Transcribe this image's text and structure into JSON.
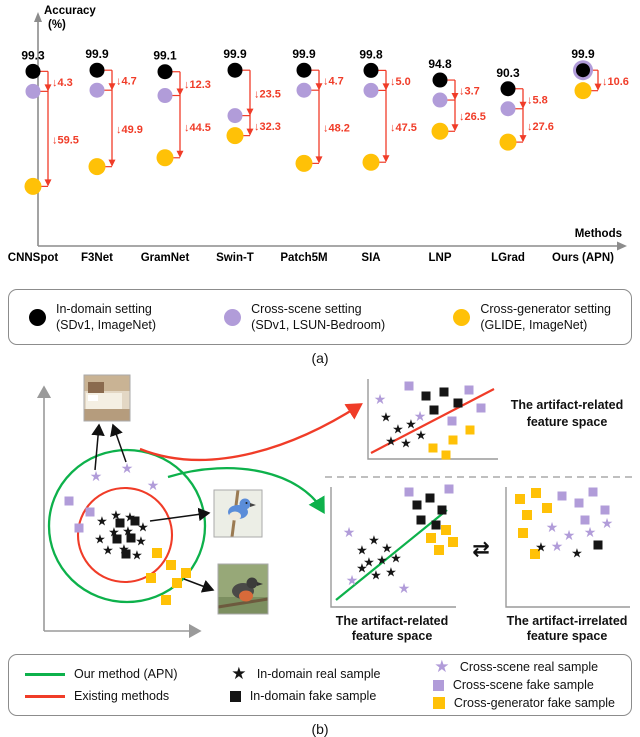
{
  "panel_a": {
    "label": "(a)",
    "legend": [
      {
        "line1": "In-domain setting",
        "line2": "(SDv1, ImageNet)",
        "color": "#000000"
      },
      {
        "line1": "Cross-scene setting",
        "line2": "(SDv1, LSUN-Bedroom)",
        "color": "#b19cd9"
      },
      {
        "line1": "Cross-generator setting",
        "line2": "(GLIDE, ImageNet)",
        "color": "#ffc107"
      }
    ]
  },
  "chart_data": {
    "type": "scatter",
    "title": "",
    "ylabel_line1": "Accuracy",
    "ylabel_line2": "(%)",
    "xlabel": "Methods",
    "categories": [
      "CNNSpot",
      "F3Net",
      "GramNet",
      "Swin-T",
      "Patch5M",
      "SIA",
      "LNP",
      "LGrad",
      "Ours (APN)"
    ],
    "series": [
      {
        "name": "In-domain setting (SDv1, ImageNet)",
        "color": "#000000",
        "values": [
          99.3,
          99.9,
          99.1,
          99.9,
          99.9,
          99.8,
          94.8,
          90.3,
          99.9
        ]
      },
      {
        "name": "Cross-scene setting (SDv1, LSUN-Bedroom)",
        "color": "#b19cd9",
        "values": [
          95.0,
          95.2,
          86.8,
          76.4,
          95.2,
          94.8,
          91.1,
          84.5,
          99.9
        ]
      },
      {
        "name": "Cross-generator setting (GLIDE, ImageNet)",
        "color": "#ffc107",
        "values": [
          39.8,
          50.0,
          54.6,
          67.6,
          51.7,
          52.3,
          68.3,
          62.7,
          89.3
        ]
      }
    ],
    "point_labels": [
      "99.3",
      "99.9",
      "99.1",
      "99.9",
      "99.9",
      "99.8",
      "94.8",
      "90.3",
      "99.9"
    ],
    "drop_annotations": [
      [
        "↓4.3",
        "↓59.5"
      ],
      [
        "↓4.7",
        "↓49.9"
      ],
      [
        "↓12.3",
        "↓44.5"
      ],
      [
        "↓23.5",
        "↓32.3"
      ],
      [
        "↓4.7",
        "↓48.2"
      ],
      [
        "↓5.0",
        "↓47.5"
      ],
      [
        "↓3.7",
        "↓26.5"
      ],
      [
        "↓5.8",
        "↓27.6"
      ],
      [
        "↓10.6"
      ]
    ],
    "annotation_color": "#f03c28",
    "axis_color": "#8c8c8c",
    "ylim": [
      30,
      102
    ],
    "legend_position": "bottom"
  },
  "panel_b": {
    "label": "(b)",
    "captions": {
      "top_right_line1": "The artifact-related",
      "top_right_line2": "feature space",
      "bottom_left_line1": "The artifact-related",
      "bottom_left_line2": "feature space",
      "bottom_right_line1": "The artifact-irrelated",
      "bottom_right_line2": "feature space"
    },
    "exchange_symbol": "⇄",
    "legend": [
      {
        "swatch": "green-line",
        "label": "Our method (APN)"
      },
      {
        "swatch": "red-line",
        "label": "Existing methods"
      },
      {
        "swatch": "black-star",
        "label": "In-domain real sample"
      },
      {
        "swatch": "black-square",
        "label": "In-domain fake sample"
      },
      {
        "swatch": "purple-star",
        "label": "Cross-scene real sample"
      },
      {
        "swatch": "purple-square",
        "label": "Cross-scene fake sample"
      },
      {
        "swatch": "yellow-square",
        "label": "Cross-generator fake sample"
      }
    ],
    "colors": {
      "our_method_green": "#0db14b",
      "existing_methods_red": "#f03c28",
      "in_domain_black": "#151515",
      "cross_scene_purple": "#b19cd9",
      "cross_generator_yellow": "#ffc107"
    }
  }
}
